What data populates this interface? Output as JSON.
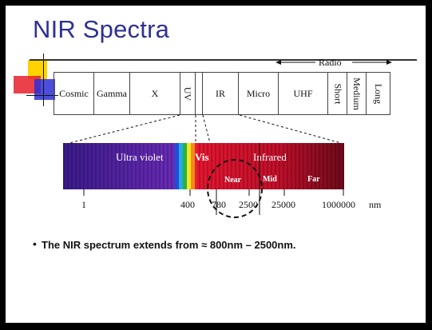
{
  "slide": {
    "title": "NIR Spectra",
    "bullet": "The NIR spectrum extends from ≈ 800nm – 2500nm."
  },
  "em_bands": {
    "radio_label": "Radio",
    "cells": [
      "Cosmic",
      "Gamma",
      "X",
      "UV",
      "",
      "IR",
      "Micro",
      "UHF",
      "Short",
      "Medium",
      "Long"
    ]
  },
  "spectrum": {
    "ultraviolet_label": "Ultra violet",
    "visible_label": "Vis",
    "infrared_label": "Infrared",
    "near_label": "Near",
    "mid_label": "Mid",
    "far_label": "Far",
    "unit": "nm",
    "ticks": [
      "1",
      "400",
      "780",
      "2500",
      "25000",
      "1000000"
    ]
  },
  "colors": {
    "title": "#2e3192",
    "ultraviolet": "#5a1fa0",
    "infrared": "#c8102e",
    "far_infrared": "#7a0a1c",
    "deco_yellow": "#ffd200",
    "deco_red": "#e8202a",
    "deco_blue": "#2b2fd6"
  }
}
